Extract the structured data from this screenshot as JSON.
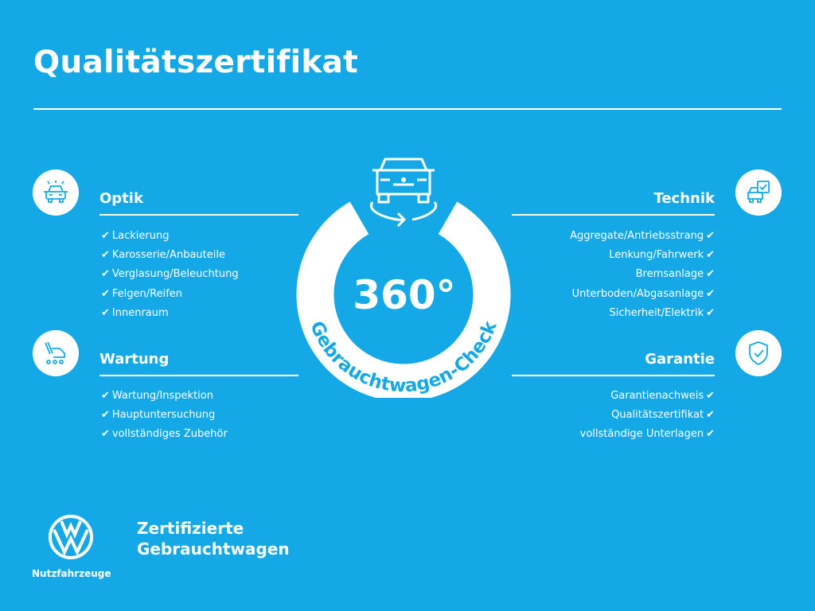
{
  "title": "Qualitätszertifikat",
  "colors": {
    "background": "#14a8e6",
    "foreground": "#ffffff"
  },
  "center": {
    "degrees": "360°",
    "caption": "Gebrauchtwagen-Check",
    "icon": "car-rotate-icon"
  },
  "check_glyph": "✔",
  "sections": {
    "optik": {
      "heading": "Optik",
      "icon": "car-lights-icon",
      "items": [
        "Lackierung",
        "Karosserie/Anbauteile",
        "Verglasung/Beleuchtung",
        "Felgen/Reifen",
        "Innenraum"
      ]
    },
    "wartung": {
      "heading": "Wartung",
      "icon": "wrench-van-icon",
      "items": [
        "Wartung/Inspektion",
        "Hauptuntersuchung",
        "vollständiges Zubehör"
      ]
    },
    "technik": {
      "heading": "Technik",
      "icon": "car-checklist-icon",
      "items": [
        "Aggregate/Antriebsstrang",
        "Lenkung/Fahrwerk",
        "Bremsanlage",
        "Unterboden/Abgasanlage",
        "Sicherheit/Elektrik"
      ]
    },
    "garantie": {
      "heading": "Garantie",
      "icon": "shield-check-icon",
      "items": [
        "Garantienachweis",
        "Qualitätszertifikat",
        "vollständige Unterlagen"
      ]
    }
  },
  "footer": {
    "brand_line1": "Zertifizierte",
    "brand_line2": "Gebrauchtwagen",
    "logo_sub": "Nutzfahrzeuge",
    "logo": "vw-logo"
  }
}
